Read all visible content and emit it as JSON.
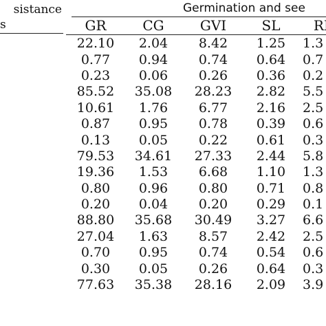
{
  "header": {
    "left_line1": "sistance",
    "left_line2": "s",
    "group_title": "Germination and see"
  },
  "columns": [
    "GR",
    "CG",
    "GVI",
    "SL",
    "RL"
  ],
  "rows": [
    [
      "22.10",
      "2.04",
      "8.42",
      "1.25",
      "1.3"
    ],
    [
      "0.77",
      "0.94",
      "0.74",
      "0.64",
      "0.7"
    ],
    [
      "0.23",
      "0.06",
      "0.26",
      "0.36",
      "0.2"
    ],
    [
      "85.52",
      "35.08",
      "28.23",
      "2.82",
      "5.5"
    ],
    [
      "10.61",
      "1.76",
      "6.77",
      "2.16",
      "2.5"
    ],
    [
      "0.87",
      "0.95",
      "0.78",
      "0.39",
      "0.6"
    ],
    [
      "0.13",
      "0.05",
      "0.22",
      "0.61",
      "0.3"
    ],
    [
      "79.53",
      "34.61",
      "27.33",
      "2.44",
      "5.8"
    ],
    [
      "19.36",
      "1.53",
      "6.68",
      "1.10",
      "1.3"
    ],
    [
      "0.80",
      "0.96",
      "0.80",
      "0.71",
      "0.8"
    ],
    [
      "0.20",
      "0.04",
      "0.20",
      "0.29",
      "0.1"
    ],
    [
      "88.80",
      "35.68",
      "30.49",
      "3.27",
      "6.6"
    ],
    [
      "27.04",
      "1.63",
      "8.57",
      "2.42",
      "2.5"
    ],
    [
      "0.70",
      "0.95",
      "0.74",
      "0.54",
      "0.6"
    ],
    [
      "0.30",
      "0.05",
      "0.26",
      "0.64",
      "0.3"
    ],
    [
      "77.63",
      "35.38",
      "28.16",
      "2.09",
      "3.9"
    ]
  ]
}
